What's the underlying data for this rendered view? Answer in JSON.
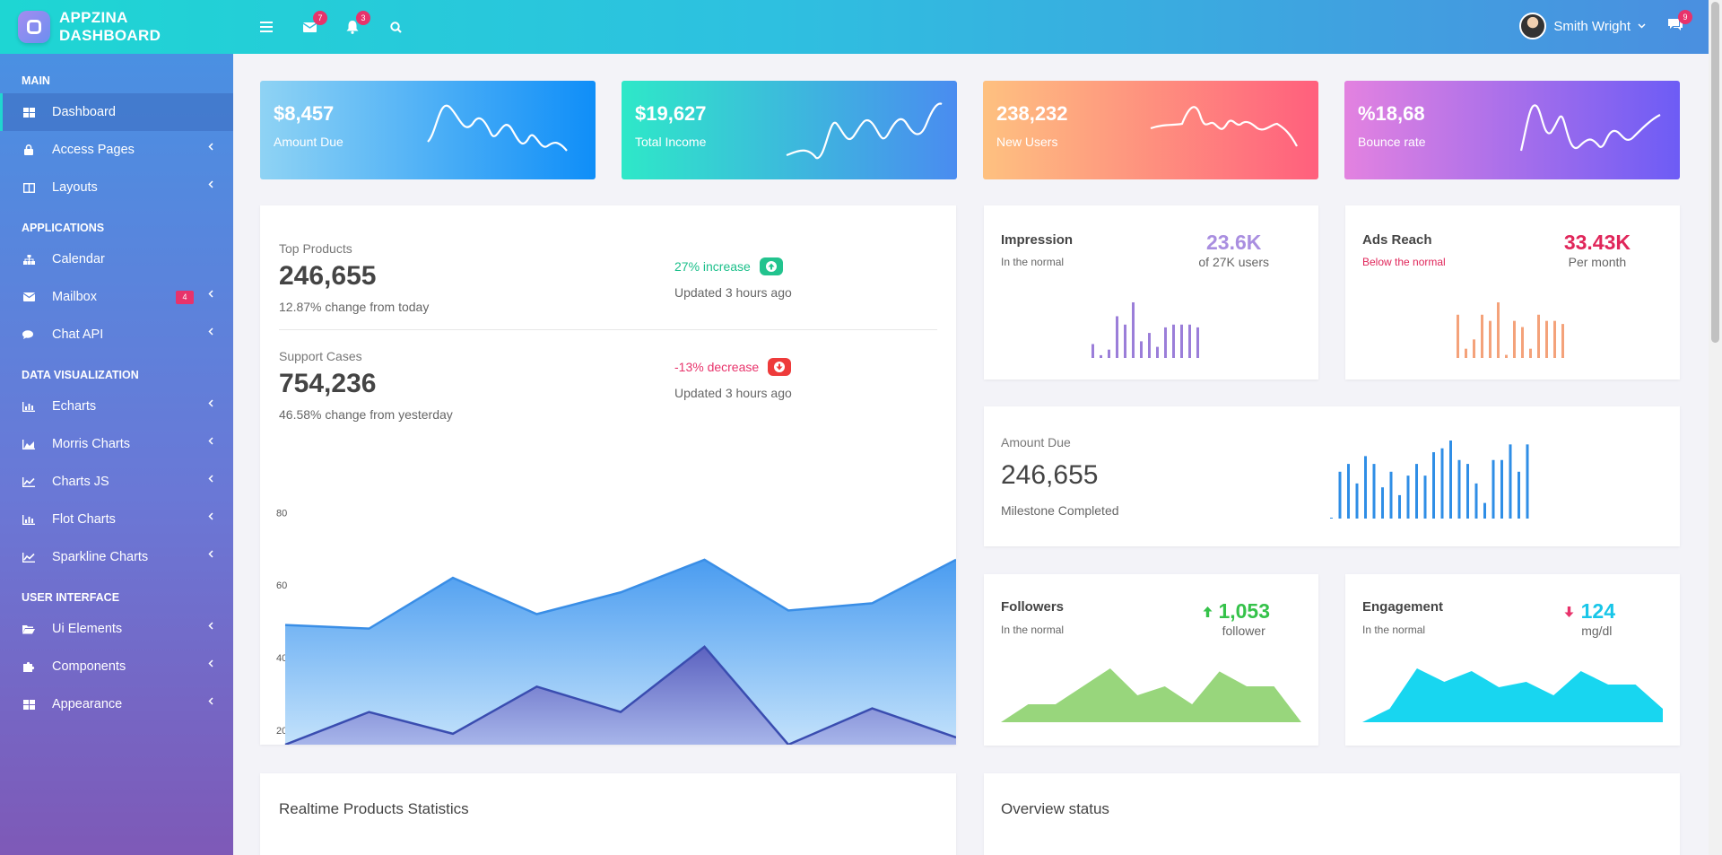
{
  "header": {
    "brand": "APPZINA DASHBOARD",
    "mail_badge": "7",
    "bell_badge": "3",
    "user_name": "Smith Wright",
    "chat_badge": "9"
  },
  "sidebar": {
    "sections": [
      {
        "title": "MAIN",
        "items": [
          {
            "label": "Dashboard",
            "icon": "dashboard-icon",
            "active": true
          },
          {
            "label": "Access Pages",
            "icon": "lock-icon"
          },
          {
            "label": "Layouts",
            "icon": "columns-icon"
          }
        ]
      },
      {
        "title": "APPLICATIONS",
        "items": [
          {
            "label": "Calendar",
            "icon": "sitemap-icon"
          },
          {
            "label": "Mailbox",
            "icon": "envelope-icon",
            "badge": "4"
          },
          {
            "label": "Chat API",
            "icon": "comments-icon"
          }
        ]
      },
      {
        "title": "DATA VISUALIZATION",
        "items": [
          {
            "label": "Echarts",
            "icon": "bar-chart-icon"
          },
          {
            "label": "Morris Charts",
            "icon": "area-chart-icon"
          },
          {
            "label": "Charts JS",
            "icon": "line-chart-icon"
          },
          {
            "label": "Flot Charts",
            "icon": "bar-chart-icon"
          },
          {
            "label": "Sparkline Charts",
            "icon": "line-chart-icon"
          }
        ]
      },
      {
        "title": "USER INTERFACE",
        "items": [
          {
            "label": "Ui Elements",
            "icon": "folder-open-icon"
          },
          {
            "label": "Components",
            "icon": "puzzle-icon"
          },
          {
            "label": "Appearance",
            "icon": "dashboard-icon"
          }
        ]
      }
    ]
  },
  "stats": [
    {
      "value": "$8,457",
      "label": "Amount Due",
      "colors": [
        "#8fd3f4",
        "#0f8ef8"
      ]
    },
    {
      "value": "$19,627",
      "label": "Total Income",
      "colors": [
        "#2ee8c8",
        "#4a8cf0"
      ]
    },
    {
      "value": "238,232",
      "label": "New Users",
      "colors": [
        "#fec180",
        "#ff5f7d"
      ]
    },
    {
      "value": "%18,68",
      "label": "Bounce rate",
      "colors": [
        "#e382e0",
        "#6d5cf5"
      ]
    }
  ],
  "products": {
    "top_label": "Top Products",
    "top_value": "246,655",
    "top_change": "12.87% change from today",
    "top_trend": "27% increase",
    "top_updated": "Updated 3 hours ago",
    "support_label": "Support Cases",
    "support_value": "754,236",
    "support_change": "46.58% change from yesterday",
    "support_trend": "-13% decrease",
    "support_updated": "Updated 3 hours ago"
  },
  "impression": {
    "title": "Impression",
    "sub": "In the normal",
    "value": "23.6K",
    "unit": "of 27K users"
  },
  "ads": {
    "title": "Ads Reach",
    "sub": "Below the normal",
    "value": "33.43K",
    "unit": "Per month"
  },
  "amount": {
    "label": "Amount Due",
    "value": "246,655",
    "sub": "Milestone Completed"
  },
  "followers": {
    "title": "Followers",
    "sub": "In the normal",
    "value": "1,053",
    "unit": "follower"
  },
  "engagement": {
    "title": "Engagement",
    "sub": "In the normal",
    "value": "124",
    "unit": "mg/dl"
  },
  "bottom": {
    "left_title": "Realtime Products Statistics",
    "right_title": "Overview status"
  },
  "chart_data": [
    {
      "type": "area",
      "y_ticks": [
        "80",
        "60",
        "40",
        "20"
      ],
      "ylim": [
        16,
        88
      ],
      "series": [
        {
          "values": [
            49,
            48,
            62,
            52,
            58,
            67,
            53,
            55,
            67
          ],
          "color": "#3a8ee6"
        },
        {
          "values": [
            16,
            25,
            19,
            32,
            25,
            43,
            16,
            26,
            18
          ],
          "color": "#3a4db0"
        }
      ]
    },
    {
      "type": "bar",
      "values": [
        5,
        1,
        3,
        15,
        12,
        20,
        6,
        9,
        4,
        11,
        12,
        12,
        12,
        11
      ],
      "color": "#9b7ed9"
    },
    {
      "type": "bar",
      "values": [
        14,
        3,
        6,
        14,
        12,
        18,
        1,
        12,
        10,
        3,
        14,
        12,
        12,
        11
      ],
      "color": "#f4a27a"
    },
    {
      "type": "bar",
      "values": [
        0,
        12,
        14,
        9,
        16,
        14,
        8,
        12,
        6,
        11,
        14,
        11,
        17,
        18,
        20,
        15,
        14,
        9,
        4,
        15,
        15,
        19,
        12,
        19
      ],
      "color": "#2f8ee6"
    },
    {
      "type": "area",
      "values": [
        0,
        6,
        6,
        12,
        18,
        9,
        12,
        6,
        17,
        12,
        12,
        0
      ],
      "color": "#98d67c"
    },
    {
      "type": "area",
      "values": [
        0,
        5,
        20,
        15,
        19,
        13,
        15,
        10,
        19,
        14,
        14,
        5
      ],
      "color": "#18d6f0"
    }
  ]
}
